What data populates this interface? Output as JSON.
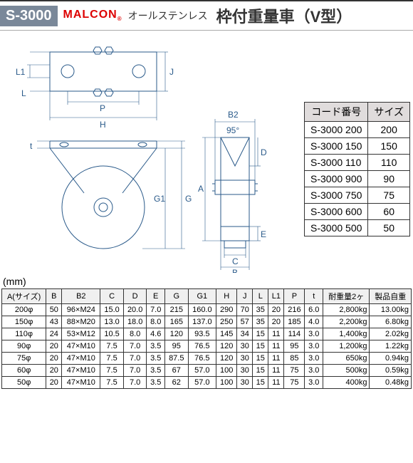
{
  "header": {
    "code": "S-3000",
    "brand": "MALCON",
    "subtitle": "オールステンレス",
    "title": "枠付重量車（V型）"
  },
  "dimLabels": {
    "L1": "L1",
    "L": "L",
    "J": "J",
    "P": "P",
    "H": "H",
    "t": "t",
    "G1": "G1",
    "G": "G",
    "A": "A",
    "B2": "B2",
    "angle": "95°",
    "D": "D",
    "E": "E",
    "C": "C",
    "B": "B"
  },
  "codeTable": {
    "headers": [
      "コード番号",
      "サイズ"
    ],
    "rows": [
      [
        "S-3000 200",
        "200"
      ],
      [
        "S-3000 150",
        "150"
      ],
      [
        "S-3000 110",
        "110"
      ],
      [
        "S-3000 900",
        "90"
      ],
      [
        "S-3000 750",
        "75"
      ],
      [
        "S-3000 600",
        "60"
      ],
      [
        "S-3000 500",
        "50"
      ]
    ]
  },
  "unit": "(mm)",
  "specTable": {
    "headers": [
      "A(サイズ)",
      "B",
      "B2",
      "C",
      "D",
      "E",
      "G",
      "G1",
      "H",
      "J",
      "L",
      "L1",
      "P",
      "t",
      "耐重量2ヶ",
      "製品自重"
    ],
    "rows": [
      [
        "200φ",
        "50",
        "96×M24",
        "15.0",
        "20.0",
        "7.0",
        "215",
        "160.0",
        "290",
        "70",
        "35",
        "20",
        "216",
        "6.0",
        "2,800kg",
        "13.00kg"
      ],
      [
        "150φ",
        "43",
        "88×M20",
        "13.0",
        "18.0",
        "8.0",
        "165",
        "137.0",
        "250",
        "57",
        "35",
        "20",
        "185",
        "4.0",
        "2,200kg",
        "6.80kg"
      ],
      [
        "110φ",
        "24",
        "53×M12",
        "10.5",
        "8.0",
        "4.6",
        "120",
        "93.5",
        "145",
        "34",
        "15",
        "11",
        "114",
        "3.0",
        "1,400kg",
        "2.02kg"
      ],
      [
        "90φ",
        "20",
        "47×M10",
        "7.5",
        "7.0",
        "3.5",
        "95",
        "76.5",
        "120",
        "30",
        "15",
        "11",
        "95",
        "3.0",
        "1,200kg",
        "1.22kg"
      ],
      [
        "75φ",
        "20",
        "47×M10",
        "7.5",
        "7.0",
        "3.5",
        "87.5",
        "76.5",
        "120",
        "30",
        "15",
        "11",
        "85",
        "3.0",
        "650kg",
        "0.94kg"
      ],
      [
        "60φ",
        "20",
        "47×M10",
        "7.5",
        "7.0",
        "3.5",
        "67",
        "57.0",
        "100",
        "30",
        "15",
        "11",
        "75",
        "3.0",
        "500kg",
        "0.59kg"
      ],
      [
        "50φ",
        "20",
        "47×M10",
        "7.5",
        "7.0",
        "3.5",
        "62",
        "57.0",
        "100",
        "30",
        "15",
        "11",
        "75",
        "3.0",
        "400kg",
        "0.48kg"
      ]
    ]
  }
}
